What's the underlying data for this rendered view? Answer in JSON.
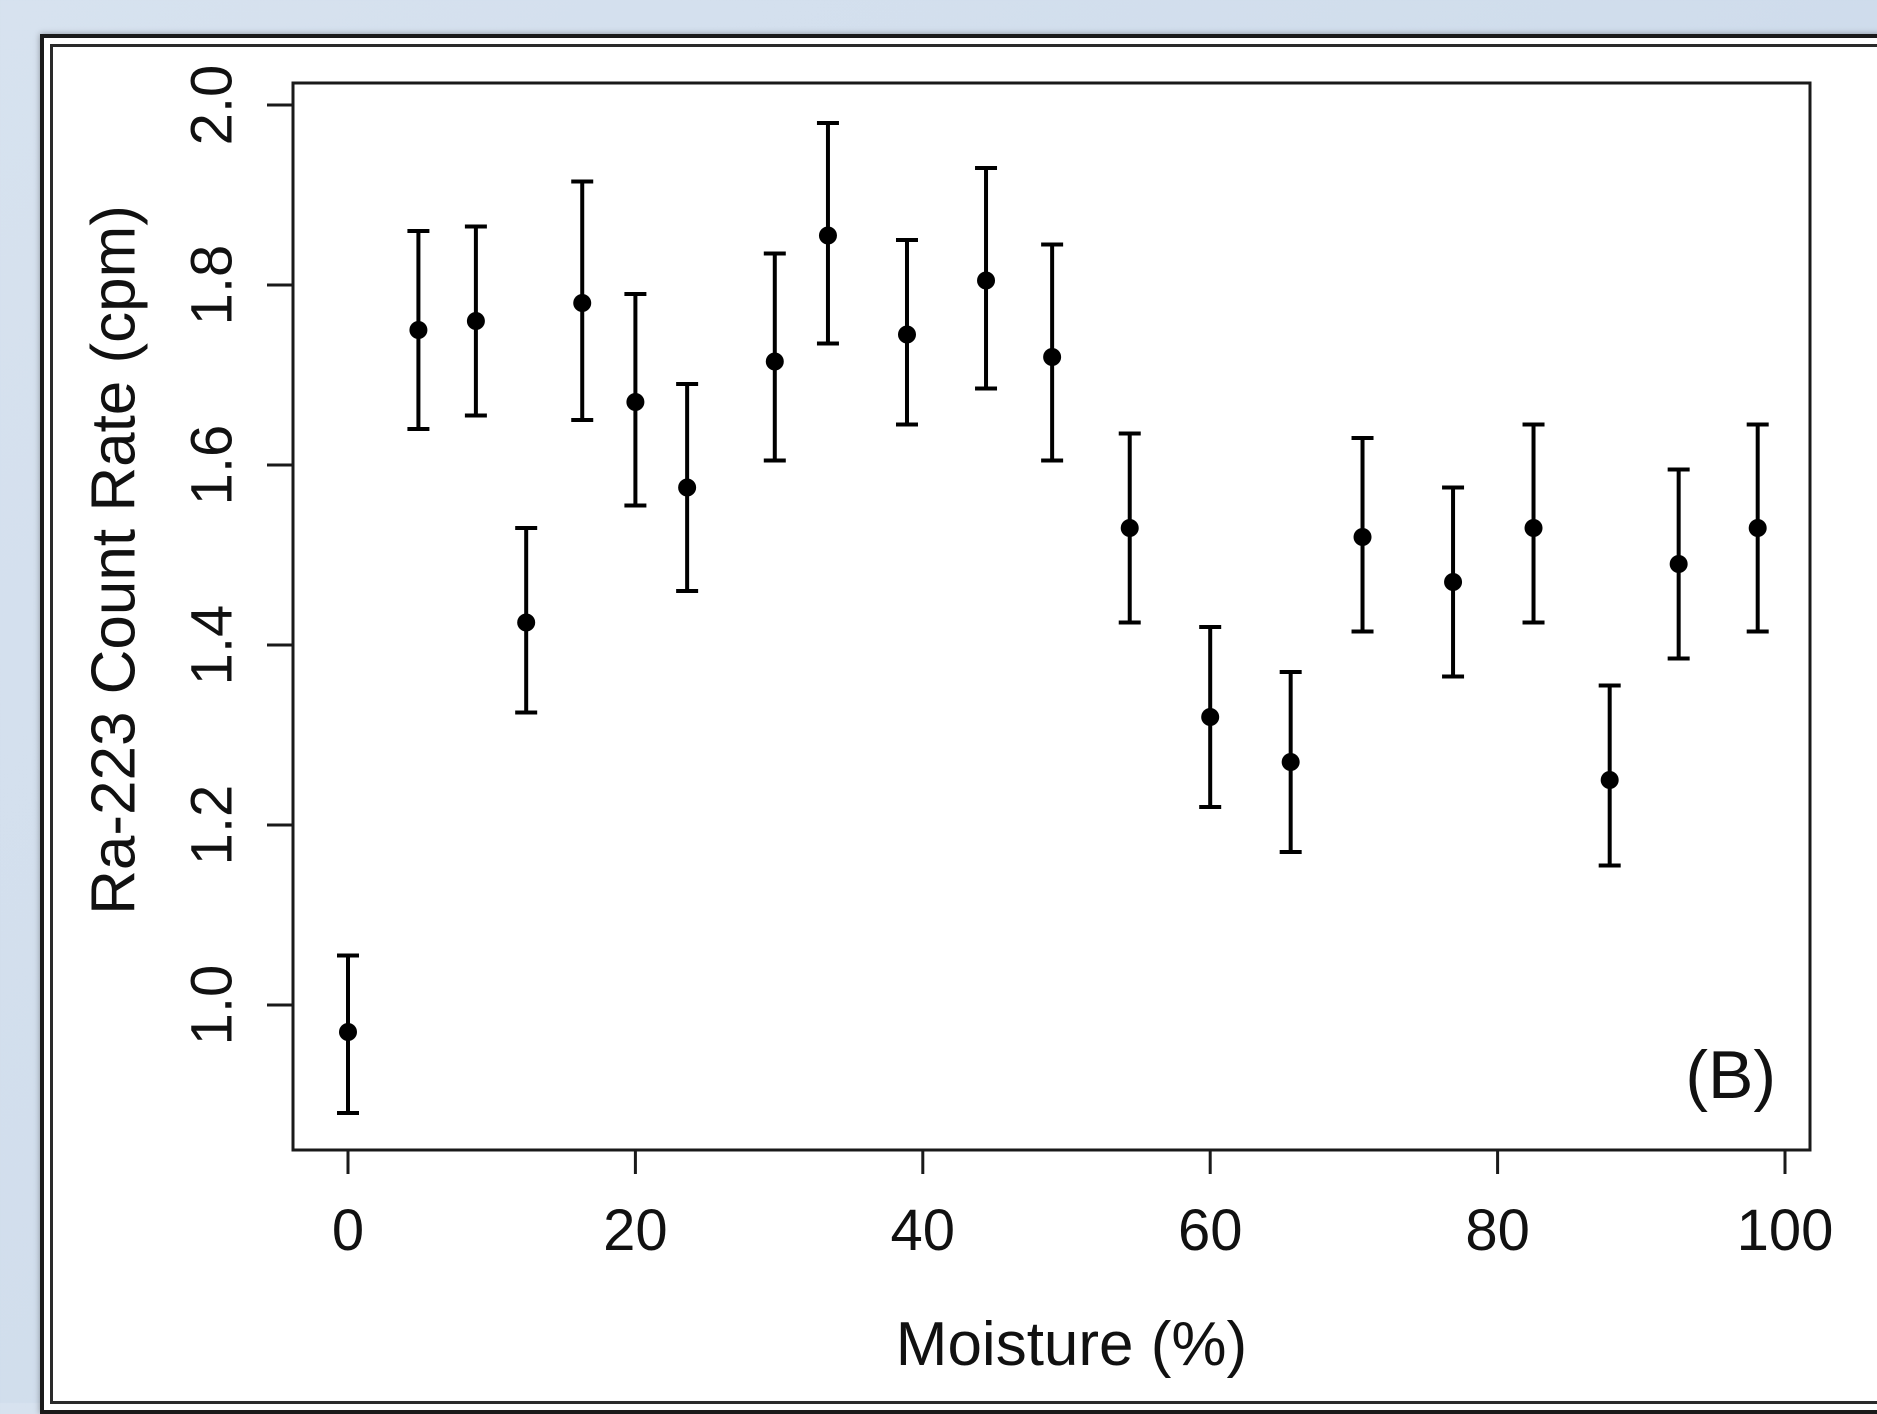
{
  "panel_label": "(B)",
  "colors": {
    "marks": "#000000",
    "frame": "#1a1a1a",
    "background": "#d7e2ef"
  },
  "chart_data": {
    "type": "scatter",
    "xlabel": "Moisture (%)",
    "ylabel": "Ra-223 Count Rate (cpm)",
    "xlim": [
      0,
      100
    ],
    "ylim": [
      0.85,
      2.03
    ],
    "xticks": [
      0,
      20,
      40,
      60,
      80,
      100
    ],
    "yticks": [
      1.0,
      1.2,
      1.4,
      1.6,
      1.8,
      2.0
    ],
    "xtick_labels": [
      "0",
      "20",
      "40",
      "60",
      "80",
      "100"
    ],
    "ytick_labels": [
      "1.0",
      "1.2",
      "1.4",
      "1.6",
      "1.8",
      "2.0"
    ],
    "error_bars": true,
    "grid": false,
    "annotation": "(B)",
    "points": [
      {
        "x": 0,
        "y": 0.97,
        "lo": 0.88,
        "hi": 1.055
      },
      {
        "x": 4.9,
        "y": 1.75,
        "lo": 1.64,
        "hi": 1.86
      },
      {
        "x": 8.9,
        "y": 1.76,
        "lo": 1.655,
        "hi": 1.865
      },
      {
        "x": 12.4,
        "y": 1.425,
        "lo": 1.325,
        "hi": 1.53
      },
      {
        "x": 16.3,
        "y": 1.78,
        "lo": 1.65,
        "hi": 1.915
      },
      {
        "x": 20.0,
        "y": 1.67,
        "lo": 1.555,
        "hi": 1.79
      },
      {
        "x": 23.6,
        "y": 1.575,
        "lo": 1.46,
        "hi": 1.69
      },
      {
        "x": 29.7,
        "y": 1.715,
        "lo": 1.605,
        "hi": 1.835
      },
      {
        "x": 33.4,
        "y": 1.855,
        "lo": 1.735,
        "hi": 1.98
      },
      {
        "x": 38.9,
        "y": 1.745,
        "lo": 1.645,
        "hi": 1.85
      },
      {
        "x": 44.4,
        "y": 1.805,
        "lo": 1.685,
        "hi": 1.93
      },
      {
        "x": 49.0,
        "y": 1.72,
        "lo": 1.605,
        "hi": 1.845
      },
      {
        "x": 54.4,
        "y": 1.53,
        "lo": 1.425,
        "hi": 1.635
      },
      {
        "x": 60.0,
        "y": 1.32,
        "lo": 1.22,
        "hi": 1.42
      },
      {
        "x": 65.6,
        "y": 1.27,
        "lo": 1.17,
        "hi": 1.37
      },
      {
        "x": 70.6,
        "y": 1.52,
        "lo": 1.415,
        "hi": 1.63
      },
      {
        "x": 76.9,
        "y": 1.47,
        "lo": 1.365,
        "hi": 1.575
      },
      {
        "x": 82.5,
        "y": 1.53,
        "lo": 1.425,
        "hi": 1.645
      },
      {
        "x": 87.8,
        "y": 1.25,
        "lo": 1.155,
        "hi": 1.355
      },
      {
        "x": 92.6,
        "y": 1.49,
        "lo": 1.385,
        "hi": 1.595
      },
      {
        "x": 98.1,
        "y": 1.53,
        "lo": 1.415,
        "hi": 1.645
      }
    ]
  }
}
